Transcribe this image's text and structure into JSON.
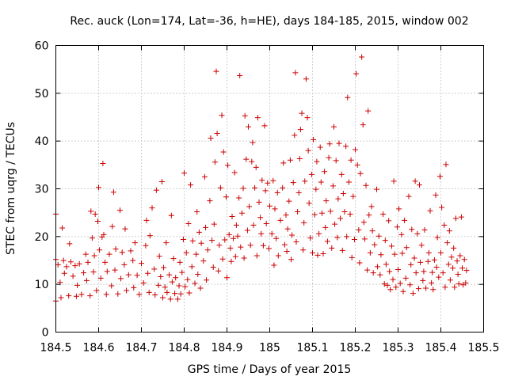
{
  "chart_data": {
    "type": "scatter",
    "title": "Rec. auck (Lon=174, Lat=-36, h=HE), days 184-185, 2015, window 002",
    "xlabel": "GPS time / Days of year 2015",
    "ylabel": "STEC from uqrg / TECUs",
    "xlim": [
      184.5,
      185.5
    ],
    "ylim": [
      0,
      60
    ],
    "grid": true,
    "marker": "plus",
    "point_color": "#cc0000",
    "x_ticks": [
      "184.5",
      "184.6",
      "184.7",
      "184.8",
      "184.9",
      "185",
      "185.1",
      "185.2",
      "185.3",
      "185.4",
      "185.5"
    ],
    "y_ticks": [
      "0",
      "10",
      "20",
      "30",
      "40",
      "50",
      "60"
    ],
    "points": [
      [
        184.5,
        24.7
      ],
      [
        184.5,
        15.2
      ],
      [
        184.5,
        6.5
      ],
      [
        184.505,
        14.1
      ],
      [
        184.51,
        10.4
      ],
      [
        184.512,
        7.2
      ],
      [
        184.515,
        21.8
      ],
      [
        184.518,
        15.0
      ],
      [
        184.52,
        12.3
      ],
      [
        184.525,
        13.7
      ],
      [
        184.53,
        7.6
      ],
      [
        184.532,
        18.5
      ],
      [
        184.535,
        14.7
      ],
      [
        184.54,
        11.7
      ],
      [
        184.545,
        13.9
      ],
      [
        184.548,
        7.5
      ],
      [
        184.55,
        9.8
      ],
      [
        184.555,
        14.3
      ],
      [
        184.56,
        7.9
      ],
      [
        184.565,
        12.4
      ],
      [
        184.57,
        16.3
      ],
      [
        184.572,
        10.8
      ],
      [
        184.575,
        14.6
      ],
      [
        184.58,
        7.6
      ],
      [
        184.582,
        25.3
      ],
      [
        184.585,
        19.7
      ],
      [
        184.588,
        12.6
      ],
      [
        184.59,
        16.0
      ],
      [
        184.592,
        24.7
      ],
      [
        184.595,
        8.7
      ],
      [
        184.598,
        23.2
      ],
      [
        184.6,
        30.3
      ],
      [
        184.602,
        17.2
      ],
      [
        184.605,
        11.3
      ],
      [
        184.608,
        19.9
      ],
      [
        184.61,
        35.3
      ],
      [
        184.612,
        20.4
      ],
      [
        184.615,
        14.6
      ],
      [
        184.618,
        7.9
      ],
      [
        184.62,
        12.7
      ],
      [
        184.625,
        16.3
      ],
      [
        184.63,
        9.7
      ],
      [
        184.632,
        22.1
      ],
      [
        184.635,
        29.3
      ],
      [
        184.638,
        13.0
      ],
      [
        184.64,
        17.4
      ],
      [
        184.645,
        8.0
      ],
      [
        184.65,
        25.5
      ],
      [
        184.652,
        11.2
      ],
      [
        184.655,
        16.7
      ],
      [
        184.66,
        14.1
      ],
      [
        184.662,
        21.6
      ],
      [
        184.665,
        8.7
      ],
      [
        184.67,
        12.0
      ],
      [
        184.675,
        17.0
      ],
      [
        184.68,
        15.0
      ],
      [
        184.682,
        9.3
      ],
      [
        184.685,
        18.7
      ],
      [
        184.69,
        11.9
      ],
      [
        184.695,
        7.9
      ],
      [
        184.7,
        14.4
      ],
      [
        184.705,
        10.3
      ],
      [
        184.71,
        18.1
      ],
      [
        184.712,
        23.4
      ],
      [
        184.715,
        12.3
      ],
      [
        184.718,
        8.3
      ],
      [
        184.72,
        20.2
      ],
      [
        184.725,
        26.0
      ],
      [
        184.73,
        13.2
      ],
      [
        184.732,
        7.8
      ],
      [
        184.735,
        29.7
      ],
      [
        184.74,
        9.8
      ],
      [
        184.742,
        15.9
      ],
      [
        184.745,
        11.6
      ],
      [
        184.748,
        31.5
      ],
      [
        184.75,
        7.2
      ],
      [
        184.752,
        13.5
      ],
      [
        184.755,
        9.4
      ],
      [
        184.758,
        18.7
      ],
      [
        184.76,
        8.3
      ],
      [
        184.765,
        12.0
      ],
      [
        184.768,
        6.9
      ],
      [
        184.77,
        24.4
      ],
      [
        184.772,
        10.5
      ],
      [
        184.775,
        15.4
      ],
      [
        184.778,
        8.1
      ],
      [
        184.78,
        11.4
      ],
      [
        184.785,
        6.9
      ],
      [
        184.788,
        9.7
      ],
      [
        184.79,
        14.6
      ],
      [
        184.792,
        8.0
      ],
      [
        184.795,
        12.5
      ],
      [
        184.798,
        19.4
      ],
      [
        184.8,
        33.3
      ],
      [
        184.802,
        9.5
      ],
      [
        184.805,
        16.6
      ],
      [
        184.808,
        11.0
      ],
      [
        184.81,
        22.7
      ],
      [
        184.812,
        8.2
      ],
      [
        184.815,
        30.8
      ],
      [
        184.818,
        13.7
      ],
      [
        184.82,
        19.1
      ],
      [
        184.825,
        10.2
      ],
      [
        184.828,
        16.3
      ],
      [
        184.83,
        25.2
      ],
      [
        184.832,
        12.1
      ],
      [
        184.835,
        20.9
      ],
      [
        184.838,
        9.2
      ],
      [
        184.84,
        18.6
      ],
      [
        184.845,
        14.9
      ],
      [
        184.848,
        32.5
      ],
      [
        184.85,
        21.9
      ],
      [
        184.852,
        10.9
      ],
      [
        184.855,
        17.2
      ],
      [
        184.86,
        27.5
      ],
      [
        184.862,
        40.6
      ],
      [
        184.865,
        19.2
      ],
      [
        184.868,
        13.6
      ],
      [
        184.87,
        22.6
      ],
      [
        184.872,
        35.6
      ],
      [
        184.875,
        54.6
      ],
      [
        184.877,
        41.6
      ],
      [
        184.88,
        12.8
      ],
      [
        184.882,
        18.2
      ],
      [
        184.885,
        30.2
      ],
      [
        184.888,
        45.4
      ],
      [
        184.89,
        15.3
      ],
      [
        184.892,
        37.7
      ],
      [
        184.895,
        19.3
      ],
      [
        184.898,
        28.3
      ],
      [
        184.9,
        11.4
      ],
      [
        184.902,
        34.9
      ],
      [
        184.905,
        20.4
      ],
      [
        184.908,
        17.6
      ],
      [
        184.91,
        14.8
      ],
      [
        184.912,
        24.2
      ],
      [
        184.915,
        19.6
      ],
      [
        184.918,
        33.4
      ],
      [
        184.92,
        15.8
      ],
      [
        184.922,
        22.4
      ],
      [
        184.925,
        20.1
      ],
      [
        184.928,
        28.1
      ],
      [
        184.93,
        53.7
      ],
      [
        184.932,
        17.8
      ],
      [
        184.935,
        24.9
      ],
      [
        184.938,
        30.1
      ],
      [
        184.94,
        15.5
      ],
      [
        184.942,
        45.3
      ],
      [
        184.945,
        36.2
      ],
      [
        184.948,
        21.3
      ],
      [
        184.95,
        43.0
      ],
      [
        184.952,
        26.3
      ],
      [
        184.955,
        18.2
      ],
      [
        184.958,
        35.7
      ],
      [
        184.96,
        39.7
      ],
      [
        184.962,
        22.4
      ],
      [
        184.965,
        30.2
      ],
      [
        184.968,
        34.5
      ],
      [
        184.97,
        16.0
      ],
      [
        184.972,
        44.9
      ],
      [
        184.975,
        27.2
      ],
      [
        184.978,
        24.0
      ],
      [
        184.98,
        20.6
      ],
      [
        184.982,
        31.8
      ],
      [
        184.985,
        18.1
      ],
      [
        184.988,
        43.2
      ],
      [
        184.99,
        29.6
      ],
      [
        184.992,
        22.7
      ],
      [
        184.995,
        31.2
      ],
      [
        184.998,
        17.5
      ],
      [
        185.0,
        26.4
      ],
      [
        185.005,
        20.6
      ],
      [
        185.008,
        31.7
      ],
      [
        185.01,
        14.0
      ],
      [
        185.012,
        25.8
      ],
      [
        185.015,
        19.6
      ],
      [
        185.018,
        29.2
      ],
      [
        185.02,
        16.0
      ],
      [
        185.025,
        23.4
      ],
      [
        185.03,
        30.2
      ],
      [
        185.032,
        35.4
      ],
      [
        185.035,
        18.3
      ],
      [
        185.038,
        24.5
      ],
      [
        185.04,
        16.9
      ],
      [
        185.042,
        21.6
      ],
      [
        185.045,
        27.4
      ],
      [
        185.048,
        36.0
      ],
      [
        185.05,
        15.2
      ],
      [
        185.052,
        20.3
      ],
      [
        185.055,
        31.3
      ],
      [
        185.058,
        41.2
      ],
      [
        185.06,
        54.3
      ],
      [
        185.062,
        18.9
      ],
      [
        185.065,
        25.2
      ],
      [
        185.068,
        29.2
      ],
      [
        185.07,
        36.3
      ],
      [
        185.072,
        42.4
      ],
      [
        185.075,
        45.8
      ],
      [
        185.078,
        17.2
      ],
      [
        185.08,
        22.9
      ],
      [
        185.082,
        31.6
      ],
      [
        185.085,
        53.0
      ],
      [
        185.088,
        44.9
      ],
      [
        185.09,
        38.0
      ],
      [
        185.092,
        27.0
      ],
      [
        185.095,
        19.7
      ],
      [
        185.098,
        33.0
      ],
      [
        185.1,
        16.6
      ],
      [
        185.102,
        40.3
      ],
      [
        185.105,
        24.6
      ],
      [
        185.108,
        29.9
      ],
      [
        185.11,
        35.7
      ],
      [
        185.112,
        16.1
      ],
      [
        185.115,
        20.6
      ],
      [
        185.118,
        38.7
      ],
      [
        185.12,
        31.4
      ],
      [
        185.122,
        24.9
      ],
      [
        185.125,
        16.4
      ],
      [
        185.128,
        33.6
      ],
      [
        185.13,
        21.9
      ],
      [
        185.132,
        27.5
      ],
      [
        185.135,
        19.0
      ],
      [
        185.138,
        36.5
      ],
      [
        185.14,
        39.4
      ],
      [
        185.142,
        25.3
      ],
      [
        185.145,
        17.6
      ],
      [
        185.148,
        30.6
      ],
      [
        185.15,
        43.0
      ],
      [
        185.152,
        22.6
      ],
      [
        185.155,
        35.9
      ],
      [
        185.158,
        19.8
      ],
      [
        185.16,
        27.9
      ],
      [
        185.162,
        39.5
      ],
      [
        185.165,
        23.8
      ],
      [
        185.168,
        33.0
      ],
      [
        185.17,
        17.1
      ],
      [
        185.172,
        29.0
      ],
      [
        185.175,
        25.2
      ],
      [
        185.178,
        38.9
      ],
      [
        185.18,
        20.0
      ],
      [
        185.182,
        49.1
      ],
      [
        185.185,
        31.4
      ],
      [
        185.188,
        24.7
      ],
      [
        185.19,
        36.0
      ],
      [
        185.192,
        15.6
      ],
      [
        185.195,
        28.4
      ],
      [
        185.198,
        19.4
      ],
      [
        185.2,
        38.2
      ],
      [
        185.202,
        54.1
      ],
      [
        185.205,
        35.0
      ],
      [
        185.208,
        21.4
      ],
      [
        185.21,
        14.5
      ],
      [
        185.212,
        33.2
      ],
      [
        185.215,
        57.6
      ],
      [
        185.218,
        43.4
      ],
      [
        185.22,
        23.0
      ],
      [
        185.222,
        19.5
      ],
      [
        185.225,
        30.7
      ],
      [
        185.228,
        13.0
      ],
      [
        185.23,
        46.3
      ],
      [
        185.232,
        24.5
      ],
      [
        185.235,
        16.6
      ],
      [
        185.238,
        26.3
      ],
      [
        185.24,
        21.2
      ],
      [
        185.242,
        12.4
      ],
      [
        185.245,
        18.3
      ],
      [
        185.25,
        29.9
      ],
      [
        185.252,
        13.7
      ],
      [
        185.255,
        20.1
      ],
      [
        185.258,
        12.0
      ],
      [
        185.26,
        16.2
      ],
      [
        185.265,
        24.7
      ],
      [
        185.268,
        10.1
      ],
      [
        185.27,
        19.2
      ],
      [
        185.272,
        14.2
      ],
      [
        185.275,
        9.8
      ],
      [
        185.278,
        23.3
      ],
      [
        185.28,
        12.7
      ],
      [
        185.282,
        8.9
      ],
      [
        185.285,
        18.0
      ],
      [
        185.288,
        11.0
      ],
      [
        185.29,
        31.6
      ],
      [
        185.292,
        16.3
      ],
      [
        185.295,
        9.4
      ],
      [
        185.298,
        22.0
      ],
      [
        185.3,
        13.1
      ],
      [
        185.302,
        25.8
      ],
      [
        185.305,
        10.2
      ],
      [
        185.308,
        20.4
      ],
      [
        185.31,
        16.5
      ],
      [
        185.312,
        8.5
      ],
      [
        185.315,
        23.4
      ],
      [
        185.318,
        11.3
      ],
      [
        185.32,
        17.7
      ],
      [
        185.325,
        28.4
      ],
      [
        185.328,
        9.9
      ],
      [
        185.33,
        14.1
      ],
      [
        185.332,
        21.5
      ],
      [
        185.335,
        8.1
      ],
      [
        185.338,
        15.5
      ],
      [
        185.34,
        31.6
      ],
      [
        185.342,
        12.4
      ],
      [
        185.345,
        20.6
      ],
      [
        185.348,
        9.1
      ],
      [
        185.35,
        30.8
      ],
      [
        185.352,
        14.6
      ],
      [
        185.355,
        18.2
      ],
      [
        185.358,
        10.8
      ],
      [
        185.36,
        12.7
      ],
      [
        185.362,
        21.4
      ],
      [
        185.365,
        9.2
      ],
      [
        185.37,
        14.8
      ],
      [
        185.372,
        16.6
      ],
      [
        185.375,
        25.4
      ],
      [
        185.378,
        10.3
      ],
      [
        185.38,
        12.5
      ],
      [
        185.382,
        8.9
      ],
      [
        185.385,
        15.1
      ],
      [
        185.388,
        28.7
      ],
      [
        185.39,
        13.6
      ],
      [
        185.392,
        19.8
      ],
      [
        185.395,
        11.5
      ],
      [
        185.398,
        32.6
      ],
      [
        185.4,
        16.6
      ],
      [
        185.402,
        26.1
      ],
      [
        185.405,
        12.4
      ],
      [
        185.408,
        22.4
      ],
      [
        185.41,
        9.4
      ],
      [
        185.412,
        35.1
      ],
      [
        185.415,
        18.7
      ],
      [
        185.418,
        14.2
      ],
      [
        185.42,
        21.2
      ],
      [
        185.422,
        10.9
      ],
      [
        185.425,
        15.7
      ],
      [
        185.428,
        13.4
      ],
      [
        185.43,
        17.6
      ],
      [
        185.432,
        9.4
      ],
      [
        185.435,
        23.8
      ],
      [
        185.438,
        14.9
      ],
      [
        185.44,
        12.1
      ],
      [
        185.442,
        10.1
      ],
      [
        185.445,
        16.0
      ],
      [
        185.448,
        24.1
      ],
      [
        185.45,
        13.4
      ],
      [
        185.452,
        9.9
      ],
      [
        185.455,
        15.2
      ],
      [
        185.458,
        10.3
      ],
      [
        185.46,
        12.9
      ]
    ]
  }
}
